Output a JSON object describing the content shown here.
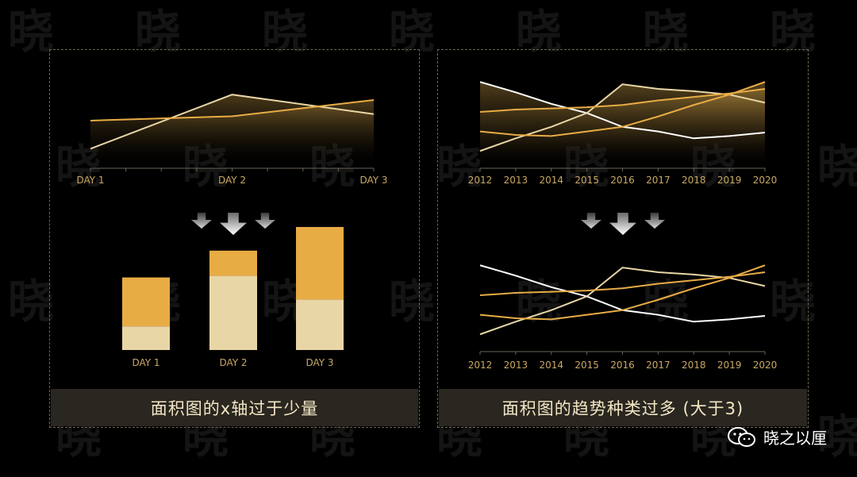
{
  "colors": {
    "gold": "#e8ac45",
    "cream": "#e9d6a6",
    "white": "#ffffff",
    "axis": "#6b6458",
    "tick_text": "#c9a864",
    "arrow": "#d8d8d8",
    "caption_bg": "#2a2620",
    "caption_text": "#f3e7c4"
  },
  "icons": [
    "down-arrow-icon",
    "wechat-icon"
  ],
  "captions": {
    "left": "面积图的x轴过于少量",
    "right": "面积图的趋势种类过多 (大于3)"
  },
  "watermark": {
    "text": "晓之以厘"
  },
  "chart_data": [
    {
      "id": "left-area",
      "type": "area",
      "categories": [
        "DAY 1",
        "DAY 2",
        "DAY 3"
      ],
      "series": [
        {
          "values": [
            1.3,
            6.3,
            4.5
          ]
        },
        {
          "values": [
            3.9,
            4.3,
            5.8
          ]
        }
      ],
      "ylim": [
        -0.5,
        8
      ],
      "grid": false
    },
    {
      "id": "left-stacked-bar",
      "type": "bar",
      "stacked": true,
      "categories": [
        "DAY 1",
        "DAY 2",
        "DAY 3"
      ],
      "series": [
        {
          "values": [
            15,
            47,
            32
          ]
        },
        {
          "values": [
            31,
            16,
            46
          ]
        }
      ],
      "ylim": [
        0,
        80
      ],
      "grid": false
    },
    {
      "id": "right-area",
      "type": "area",
      "categories": [
        "2012",
        "2013",
        "2014",
        "2015",
        "2016",
        "2017",
        "2018",
        "2019",
        "2020"
      ],
      "series": [
        {
          "values": [
            7.5,
            6.6,
            5.6,
            4.8,
            3.6,
            3.2,
            2.6,
            2.8,
            3.1
          ]
        },
        {
          "values": [
            1.5,
            2.6,
            3.6,
            4.8,
            7.3,
            6.9,
            6.7,
            6.4,
            5.7
          ]
        },
        {
          "values": [
            3.2,
            2.9,
            2.8,
            3.2,
            3.6,
            4.5,
            5.5,
            6.4,
            7.5
          ]
        },
        {
          "values": [
            4.9,
            5.1,
            5.2,
            5.3,
            5.5,
            5.9,
            6.2,
            6.5,
            6.9
          ]
        }
      ],
      "ylim": [
        0,
        8
      ],
      "grid": false
    },
    {
      "id": "right-line",
      "type": "line",
      "categories": [
        "2012",
        "2013",
        "2014",
        "2015",
        "2016",
        "2017",
        "2018",
        "2019",
        "2020"
      ],
      "series": [
        {
          "values": [
            7.5,
            6.6,
            5.6,
            4.8,
            3.6,
            3.2,
            2.6,
            2.8,
            3.1
          ]
        },
        {
          "values": [
            1.5,
            2.6,
            3.6,
            4.8,
            7.3,
            6.9,
            6.7,
            6.4,
            5.7
          ]
        },
        {
          "values": [
            3.2,
            2.9,
            2.8,
            3.2,
            3.6,
            4.5,
            5.5,
            6.4,
            7.5
          ]
        },
        {
          "values": [
            4.9,
            5.1,
            5.2,
            5.3,
            5.5,
            5.9,
            6.2,
            6.5,
            6.9
          ]
        }
      ],
      "ylim": [
        0,
        8
      ],
      "grid": false
    }
  ]
}
